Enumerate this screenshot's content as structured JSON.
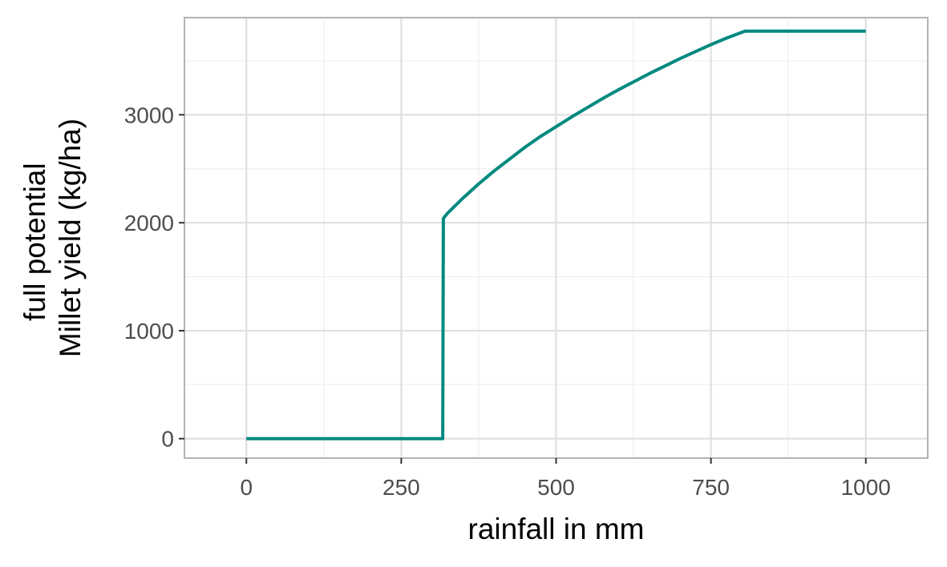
{
  "chart_data": {
    "type": "line",
    "title": "",
    "xlabel": "rainfall in mm",
    "ylabel": [
      "full potential",
      "Millet yield (kg/ha)"
    ],
    "xlim": [
      -100,
      1100
    ],
    "ylim": [
      -180,
      3900
    ],
    "x_ticks": [
      0,
      250,
      500,
      750,
      1000
    ],
    "x_tick_labels": [
      "0",
      "250",
      "500",
      "750",
      "1000"
    ],
    "y_ticks": [
      0,
      1000,
      2000,
      3000
    ],
    "y_tick_labels": [
      "0",
      "1000",
      "2000",
      "3000"
    ],
    "x_minor_ticks": [
      125,
      375,
      625,
      875
    ],
    "y_minor_ticks": [
      500,
      1500,
      2500,
      3500
    ],
    "grid": true,
    "legend": "none",
    "series": [
      {
        "color": "#00897f",
        "points": [
          [
            0,
            0
          ],
          [
            317,
            0
          ],
          [
            318,
            2040
          ],
          [
            325,
            2090
          ],
          [
            350,
            2230
          ],
          [
            375,
            2360
          ],
          [
            400,
            2480
          ],
          [
            425,
            2590
          ],
          [
            450,
            2700
          ],
          [
            475,
            2800
          ],
          [
            500,
            2890
          ],
          [
            525,
            2980
          ],
          [
            550,
            3065
          ],
          [
            575,
            3150
          ],
          [
            600,
            3230
          ],
          [
            625,
            3305
          ],
          [
            650,
            3380
          ],
          [
            675,
            3450
          ],
          [
            700,
            3520
          ],
          [
            725,
            3585
          ],
          [
            750,
            3650
          ],
          [
            775,
            3710
          ],
          [
            805,
            3775
          ],
          [
            1000,
            3775
          ]
        ]
      }
    ]
  },
  "colors": {
    "panel_border": "#b3b3b3",
    "grid_major": "#dedede",
    "grid_minor": "#eeeeee",
    "line": "#00897f"
  }
}
